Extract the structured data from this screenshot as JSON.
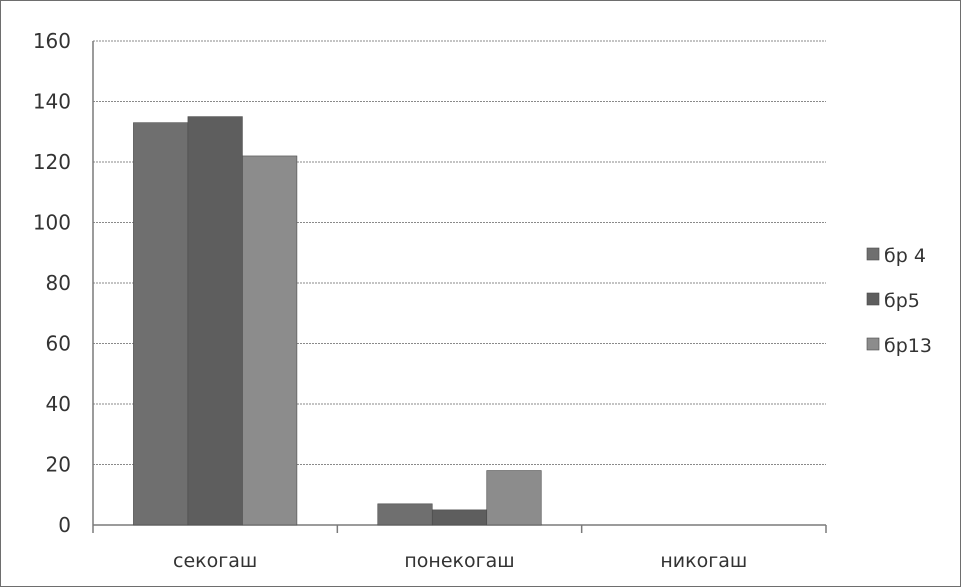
{
  "chart_data": {
    "type": "bar",
    "categories": [
      "секогаш",
      "понекогаш",
      "никогаш"
    ],
    "series": [
      {
        "name": "бр 4",
        "values": [
          133,
          7,
          0
        ],
        "color": "#6f6f6f"
      },
      {
        "name": "бр5",
        "values": [
          135,
          5,
          0
        ],
        "color": "#5e5e5e"
      },
      {
        "name": "бр13",
        "values": [
          122,
          18,
          0
        ],
        "color": "#8c8c8c"
      }
    ],
    "yticks": [
      "0",
      "20",
      "40",
      "60",
      "80",
      "100",
      "120",
      "140",
      "160"
    ],
    "ylim": [
      0,
      160
    ],
    "grid": true,
    "legend_position": "right"
  }
}
